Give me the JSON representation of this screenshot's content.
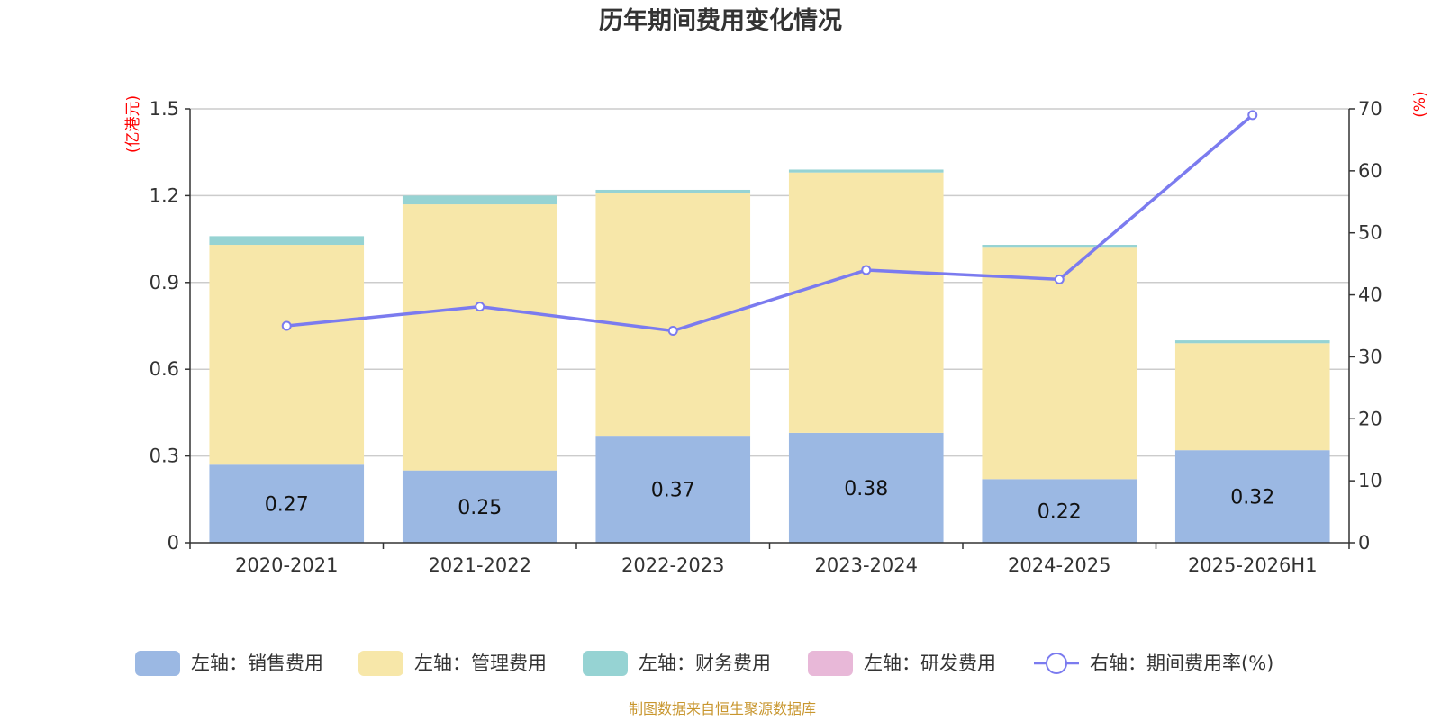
{
  "chart_data": {
    "type": "bar",
    "stacked": true,
    "title": "历年期间费用变化情况",
    "categories": [
      "2020-2021",
      "2021-2022",
      "2022-2023",
      "2023-2024",
      "2024-2025",
      "2025-2026H1"
    ],
    "left_axis": {
      "unit": "(亿港元)",
      "ylim": [
        0,
        1.5
      ],
      "ticks": [
        "0",
        "0.3",
        "0.6",
        "0.9",
        "1.2",
        "1.5"
      ]
    },
    "right_axis": {
      "unit": "(%)",
      "ylim": [
        0,
        70
      ],
      "ticks": [
        "0",
        "10",
        "20",
        "30",
        "40",
        "50",
        "60",
        "70"
      ]
    },
    "series": [
      {
        "name": "左轴：销售费用",
        "axis": "left",
        "color": "#9bb8e3",
        "values": [
          0.27,
          0.25,
          0.37,
          0.38,
          0.22,
          0.32
        ],
        "labels": [
          "0.27",
          "0.25",
          "0.37",
          "0.38",
          "0.22",
          "0.32"
        ]
      },
      {
        "name": "左轴：管理费用",
        "axis": "left",
        "color": "#f7e7a9",
        "values": [
          0.76,
          0.92,
          0.84,
          0.9,
          0.8,
          0.37
        ]
      },
      {
        "name": "左轴：财务费用",
        "axis": "left",
        "color": "#96d3d3",
        "values": [
          0.03,
          0.03,
          0.01,
          0.01,
          0.01,
          0.01
        ]
      },
      {
        "name": "左轴：研发费用",
        "axis": "left",
        "color": "#e8b8d8",
        "values": [
          0,
          0,
          0,
          0,
          0,
          0
        ]
      },
      {
        "name": "右轴：期间费用率(%)",
        "axis": "right",
        "type": "line",
        "color": "#7b7bef",
        "values": [
          35,
          38.1,
          34.2,
          44,
          42.5,
          69
        ]
      }
    ],
    "legend_position": "bottom",
    "grid": true
  },
  "source": "制图数据来自恒生聚源数据库"
}
